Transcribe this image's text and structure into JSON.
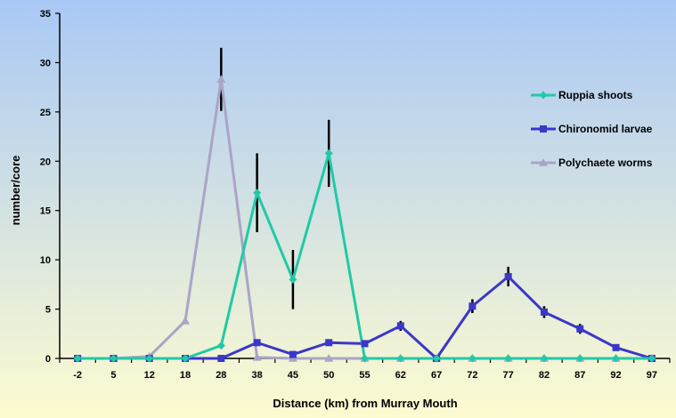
{
  "chart_data": {
    "type": "line",
    "title": "",
    "xlabel": "Distance (km) from Murray Mouth",
    "ylabel": "number/core",
    "categories": [
      "-2",
      "5",
      "12",
      "18",
      "28",
      "38",
      "45",
      "50",
      "55",
      "62",
      "67",
      "72",
      "77",
      "82",
      "87",
      "92",
      "97"
    ],
    "ylim": [
      0,
      35
    ],
    "yticks": [
      0,
      5,
      10,
      15,
      20,
      25,
      30,
      35
    ],
    "grid": false,
    "legend_position": "right",
    "background": {
      "top": "#a9c8f5",
      "bottom": "#fdfbd0"
    },
    "series": [
      {
        "name": "Ruppia shoots",
        "color": "#22c9a6",
        "marker": "diamond",
        "values": [
          0,
          0,
          0,
          0,
          1.3,
          16.8,
          8.0,
          20.8,
          0,
          0,
          0,
          0,
          0,
          0,
          0,
          0,
          0
        ],
        "errors": [
          0,
          0,
          0,
          0,
          0,
          4.0,
          3.0,
          3.4,
          0,
          0,
          0,
          0,
          0,
          0,
          0,
          0,
          0
        ]
      },
      {
        "name": "Chironomid larvae",
        "color": "#3b37c9",
        "marker": "square",
        "values": [
          0,
          0,
          0,
          0,
          0,
          1.6,
          0.4,
          1.6,
          1.5,
          3.3,
          0,
          5.3,
          8.3,
          4.7,
          3.0,
          1.1,
          0
        ],
        "errors": [
          0,
          0,
          0,
          0,
          0,
          0,
          0,
          0,
          0,
          0.5,
          0,
          0.7,
          1.0,
          0.6,
          0.5,
          0,
          0
        ]
      },
      {
        "name": "Polychaete worms",
        "color": "#a9a5c6",
        "marker": "triangle",
        "values": [
          0,
          0,
          0.2,
          3.8,
          28.3,
          0.1,
          0,
          0,
          0,
          0,
          0,
          0,
          0,
          0,
          0,
          0,
          0
        ],
        "errors": [
          0,
          0,
          0,
          0,
          3.2,
          0,
          0,
          0,
          0,
          0,
          0,
          0,
          0,
          0,
          0,
          0,
          0
        ]
      }
    ]
  }
}
